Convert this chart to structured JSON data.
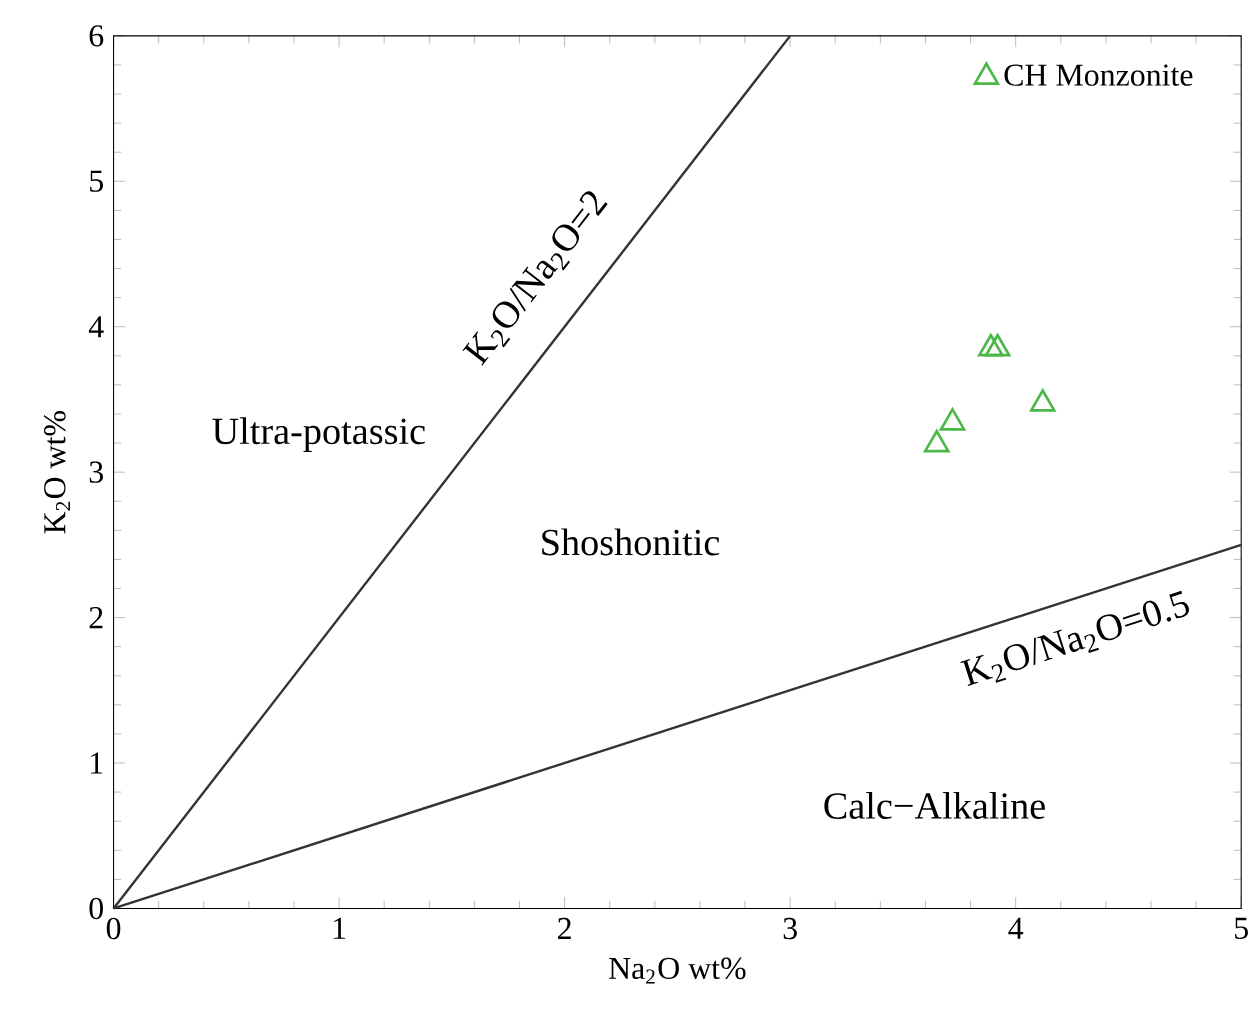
{
  "chart_data": {
    "type": "scatter",
    "xlabel": "Na$_{2}$O wt%",
    "ylabel": "K$_{2}$O wt%",
    "xlim": [
      0,
      5
    ],
    "ylim": [
      0,
      6
    ],
    "xticks": [
      0,
      1,
      2,
      3,
      4,
      5
    ],
    "yticks": [
      0,
      1,
      2,
      3,
      4,
      5,
      6
    ],
    "grid": false,
    "legend": "top right",
    "series": [
      {
        "name": "CH Monzonite",
        "marker": "triangle",
        "color": "#4cb848",
        "x": [
          3.89,
          3.92,
          3.72,
          3.65,
          4.12
        ],
        "values": [
          3.85,
          3.85,
          3.34,
          3.19,
          3.47
        ]
      },
      {
        "type": "line",
        "color": "#333333",
        "marker": "none",
        "x": [
          0,
          3
        ],
        "values": [
          0,
          6
        ]
      },
      {
        "type": "line",
        "color": "#333333",
        "marker": "none",
        "x": [
          0,
          5
        ],
        "values": [
          0,
          2.5
        ]
      }
    ],
    "annotations": [
      "K$_{2}$O/Na$_{2}$O=2",
      "K$_{2}$O/Na$_{2}$O=0.5",
      "Ultra-potassic",
      "Shoshonitic",
      "Calc−Alkaline"
    ]
  }
}
